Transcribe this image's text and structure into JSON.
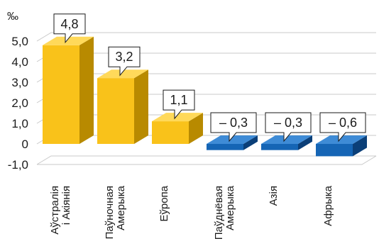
{
  "chart_data": {
    "type": "bar",
    "unit_label": "‰",
    "categories": [
      [
        "Аўстралія",
        "і Акіянія"
      ],
      [
        "Паўночная",
        "Амерыка"
      ],
      [
        "Еўропа"
      ],
      [
        "Паўднёвая",
        "Амерыка"
      ],
      [
        "Азія"
      ],
      [
        "Афрыка"
      ]
    ],
    "values": [
      4.8,
      3.2,
      1.1,
      -0.3,
      -0.3,
      -0.6
    ],
    "data_labels": [
      "4,8",
      "3,2",
      "1,1",
      "– 0,3",
      "– 0,3",
      "– 0,6"
    ],
    "y_ticks": [
      -1.0,
      0,
      1.0,
      2.0,
      3.0,
      4.0,
      5.0
    ],
    "y_tick_labels": [
      "-1,0",
      "0",
      "1,0",
      "2,0",
      "3,0",
      "4,0",
      "5,0"
    ],
    "ylim": [
      -1.0,
      5.0
    ],
    "grid": true,
    "colors": {
      "positive_front": "#F9C21A",
      "positive_side": "#B88A00",
      "positive_top": "#FFD95A",
      "negative_front": "#1565B5",
      "negative_side": "#0B3F78",
      "negative_top": "#3E8BD6"
    }
  }
}
